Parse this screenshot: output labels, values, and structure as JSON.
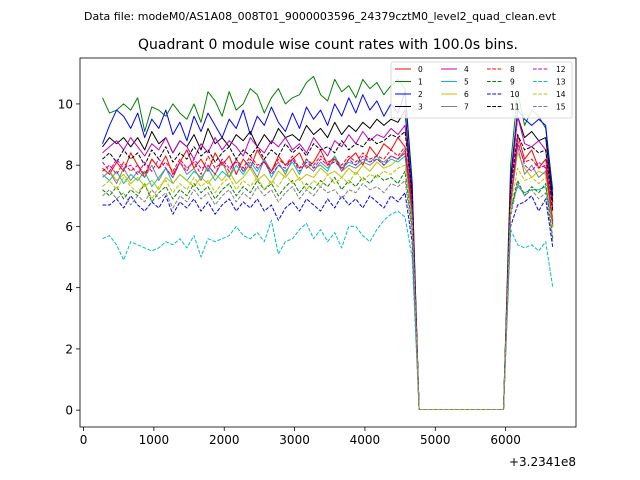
{
  "figure": {
    "suptitle": "Data file: modeM0/AS1A08_008T01_9000003596_24379cztM0_level2_quad_clean.evt"
  },
  "chart_data": {
    "type": "line",
    "title": "Quadrant 0 module wise count rates with 100.0s bins.",
    "xlabel": "",
    "ylabel": "",
    "x_offset_label": "+3.2341e8",
    "xlim": [
      -50,
      7000
    ],
    "ylim": [
      -0.55,
      11.5
    ],
    "xticks": [
      0,
      1000,
      2000,
      3000,
      4000,
      5000,
      6000
    ],
    "xtick_labels": [
      "0",
      "1000",
      "2000",
      "3000",
      "4000",
      "5000",
      "6000"
    ],
    "yticks": [
      0,
      2,
      4,
      6,
      8,
      10
    ],
    "ytick_labels": [
      "0",
      "2",
      "4",
      "6",
      "8",
      "10"
    ],
    "grid": false,
    "legend": {
      "placement": "top-right",
      "columns": 4
    },
    "x": [
      270,
      370,
      470,
      570,
      670,
      770,
      870,
      970,
      1070,
      1170,
      1270,
      1370,
      1470,
      1570,
      1670,
      1770,
      1870,
      1970,
      2070,
      2170,
      2270,
      2370,
      2470,
      2570,
      2670,
      2770,
      2870,
      2970,
      3070,
      3170,
      3270,
      3370,
      3470,
      3570,
      3670,
      3770,
      3870,
      3970,
      4070,
      4170,
      4270,
      4370,
      4470,
      4570,
      4670,
      4770,
      4870,
      4970,
      5070,
      5170,
      5270,
      5370,
      5470,
      5570,
      5670,
      5770,
      5870,
      5970,
      6070,
      6170,
      6270,
      6370,
      6470,
      6570,
      6670
    ],
    "series": [
      {
        "name": "0",
        "color": "#ff0000",
        "dash": "solid",
        "values": [
          7.9,
          7.7,
          8.1,
          7.8,
          8.4,
          8.0,
          7.6,
          8.2,
          7.9,
          8.3,
          7.7,
          8.1,
          8.5,
          7.9,
          8.2,
          7.8,
          8.4,
          8.0,
          8.3,
          7.7,
          8.2,
          7.9,
          8.5,
          8.1,
          7.8,
          8.3,
          8.0,
          8.2,
          8.4,
          7.9,
          8.1,
          8.5,
          8.0,
          8.3,
          7.8,
          8.2,
          8.4,
          8.0,
          8.6,
          8.3,
          8.7,
          8.5,
          8.9,
          8.6,
          6.8,
          0.02,
          0.02,
          0.02,
          0.02,
          0.02,
          0.02,
          0.02,
          0.02,
          0.02,
          0.02,
          0.02,
          0.02,
          0.02,
          6.6,
          9.0,
          8.2,
          8.5,
          7.9,
          8.2,
          6.2
        ]
      },
      {
        "name": "1",
        "color": "#008000",
        "dash": "solid",
        "values": [
          10.2,
          9.7,
          9.8,
          10.0,
          9.8,
          10.2,
          9.1,
          9.9,
          9.8,
          9.6,
          10.0,
          9.7,
          9.5,
          10.0,
          9.4,
          10.4,
          10.1,
          9.6,
          10.4,
          9.8,
          10.0,
          10.5,
          10.3,
          9.7,
          10.2,
          10.5,
          10.0,
          10.2,
          10.3,
          10.7,
          10.9,
          10.3,
          10.1,
          10.8,
          10.4,
          10.6,
          10.2,
          10.8,
          10.5,
          10.7,
          10.3,
          10.6,
          10.8,
          10.5,
          7.5,
          0.02,
          0.02,
          0.02,
          0.02,
          0.02,
          0.02,
          0.02,
          0.02,
          0.02,
          0.02,
          0.02,
          0.02,
          0.02,
          8.0,
          10.4,
          9.3,
          9.8,
          9.6,
          9.2,
          7.2
        ]
      },
      {
        "name": "2",
        "color": "#0000ff",
        "dash": "solid",
        "values": [
          8.7,
          9.3,
          9.8,
          9.6,
          9.2,
          9.7,
          8.9,
          9.5,
          9.2,
          9.8,
          9.0,
          9.4,
          8.8,
          9.6,
          9.1,
          9.7,
          9.3,
          8.9,
          9.5,
          9.2,
          9.8,
          9.0,
          9.6,
          9.3,
          9.9,
          9.4,
          9.1,
          9.7,
          9.2,
          9.9,
          9.5,
          9.8,
          9.3,
          10.0,
          9.6,
          10.2,
          9.7,
          10.3,
          9.8,
          10.1,
          9.6,
          10.0,
          9.7,
          10.4,
          7.4,
          0.02,
          0.02,
          0.02,
          0.02,
          0.02,
          0.02,
          0.02,
          0.02,
          0.02,
          0.02,
          0.02,
          0.02,
          0.02,
          7.6,
          9.8,
          9.5,
          9.3,
          9.5,
          9.3,
          7.0
        ]
      },
      {
        "name": "3",
        "color": "#000000",
        "dash": "solid",
        "values": [
          8.6,
          8.9,
          8.7,
          8.9,
          8.6,
          8.9,
          8.5,
          9.1,
          8.7,
          8.9,
          8.4,
          8.8,
          8.6,
          9.0,
          8.5,
          9.2,
          8.7,
          8.9,
          8.6,
          9.0,
          8.8,
          9.1,
          8.6,
          9.0,
          8.7,
          9.2,
          8.9,
          9.0,
          8.8,
          9.3,
          9.0,
          9.2,
          8.9,
          9.4,
          9.0,
          9.3,
          9.1,
          9.4,
          9.2,
          9.5,
          9.3,
          9.5,
          9.4,
          9.8,
          7.0,
          0.02,
          0.02,
          0.02,
          0.02,
          0.02,
          0.02,
          0.02,
          0.02,
          0.02,
          0.02,
          0.02,
          0.02,
          0.02,
          7.4,
          9.6,
          8.9,
          9.1,
          8.8,
          8.9,
          6.8
        ]
      },
      {
        "name": "4",
        "color": "#c000c0",
        "dash": "solid",
        "values": [
          8.4,
          8.6,
          8.8,
          8.5,
          8.9,
          8.6,
          8.3,
          8.7,
          8.5,
          8.9,
          8.4,
          8.8,
          8.6,
          8.2,
          8.7,
          8.4,
          8.9,
          8.5,
          8.8,
          8.6,
          8.3,
          8.9,
          8.6,
          8.4,
          8.8,
          8.6,
          8.9,
          8.5,
          8.7,
          8.4,
          8.9,
          8.6,
          8.3,
          8.8,
          8.6,
          9.0,
          8.7,
          9.1,
          8.8,
          9.0,
          8.9,
          9.2,
          9.0,
          9.3,
          6.9,
          0.02,
          0.02,
          0.02,
          0.02,
          0.02,
          0.02,
          0.02,
          0.02,
          0.02,
          0.02,
          0.02,
          0.02,
          0.02,
          7.2,
          9.6,
          8.7,
          8.6,
          8.8,
          8.5,
          6.6
        ]
      },
      {
        "name": "5",
        "color": "#00c0c0",
        "dash": "solid",
        "values": [
          7.7,
          7.5,
          7.8,
          7.4,
          7.7,
          7.5,
          7.8,
          7.3,
          7.6,
          7.9,
          7.4,
          7.7,
          7.5,
          7.8,
          7.6,
          7.9,
          7.5,
          7.8,
          7.6,
          8.0,
          7.7,
          8.1,
          7.8,
          8.2,
          7.6,
          8.0,
          7.8,
          8.1,
          7.7,
          8.2,
          7.9,
          8.0,
          7.8,
          8.3,
          7.9,
          8.1,
          8.0,
          8.2,
          8.1,
          8.3,
          8.0,
          8.2,
          8.1,
          8.3,
          6.1,
          0.02,
          0.02,
          0.02,
          0.02,
          0.02,
          0.02,
          0.02,
          0.02,
          0.02,
          0.02,
          0.02,
          0.02,
          0.02,
          6.6,
          7.3,
          7.1,
          7.2,
          7.2,
          7.3,
          6.0
        ]
      },
      {
        "name": "6",
        "color": "#c0c000",
        "dash": "solid",
        "values": [
          7.6,
          7.8,
          7.5,
          7.7,
          7.4,
          7.6,
          7.3,
          7.5,
          7.2,
          7.6,
          7.4,
          7.7,
          7.5,
          7.3,
          7.6,
          7.4,
          7.7,
          7.5,
          7.8,
          7.4,
          7.6,
          7.9,
          7.5,
          7.7,
          7.4,
          7.8,
          7.6,
          7.9,
          7.5,
          7.7,
          7.6,
          7.9,
          7.7,
          7.8,
          7.6,
          7.9,
          7.7,
          8.0,
          7.8,
          8.1,
          7.9,
          8.0,
          8.2,
          8.4,
          6.4,
          0.02,
          0.02,
          0.02,
          0.02,
          0.02,
          0.02,
          0.02,
          0.02,
          0.02,
          0.02,
          0.02,
          0.02,
          0.02,
          6.8,
          8.4,
          7.9,
          7.6,
          7.8,
          7.7,
          6.2
        ]
      },
      {
        "name": "7",
        "color": "#808080",
        "dash": "solid",
        "values": [
          7.6,
          7.8,
          7.4,
          7.9,
          7.5,
          7.8,
          7.6,
          8.0,
          7.5,
          7.9,
          7.6,
          8.1,
          7.7,
          7.9,
          7.5,
          8.0,
          7.7,
          8.1,
          7.6,
          8.2,
          7.8,
          8.0,
          7.6,
          8.2,
          7.8,
          8.1,
          7.7,
          8.2,
          7.9,
          8.0,
          7.8,
          8.1,
          7.9,
          8.2,
          7.8,
          8.0,
          7.9,
          8.1,
          8.0,
          8.2,
          8.1,
          8.3,
          8.2,
          8.5,
          6.4,
          0.02,
          0.02,
          0.02,
          0.02,
          0.02,
          0.02,
          0.02,
          0.02,
          0.02,
          0.02,
          0.02,
          0.02,
          0.02,
          6.7,
          8.6,
          7.7,
          8.0,
          7.6,
          7.8,
          6.0
        ]
      },
      {
        "name": "8",
        "color": "#ff0000",
        "dash": "dashed",
        "values": [
          7.8,
          8.0,
          7.7,
          8.1,
          7.8,
          8.0,
          7.7,
          8.2,
          7.9,
          8.1,
          7.8,
          8.2,
          7.9,
          8.1,
          7.7,
          8.3,
          7.9,
          8.1,
          7.8,
          8.2,
          7.9,
          8.3,
          8.0,
          8.1,
          7.8,
          8.2,
          8.0,
          8.3,
          7.9,
          8.2,
          8.0,
          8.3,
          8.1,
          8.2,
          8.0,
          8.3,
          8.1,
          8.4,
          8.2,
          8.3,
          8.2,
          8.5,
          8.3,
          8.6,
          6.5,
          0.02,
          0.02,
          0.02,
          0.02,
          0.02,
          0.02,
          0.02,
          0.02,
          0.02,
          0.02,
          0.02,
          0.02,
          0.02,
          6.9,
          8.7,
          8.1,
          8.2,
          7.9,
          8.0,
          6.1
        ]
      },
      {
        "name": "9",
        "color": "#008000",
        "dash": "dashed",
        "values": [
          7.2,
          7.0,
          7.3,
          6.9,
          7.2,
          7.0,
          7.4,
          6.8,
          7.1,
          7.3,
          6.9,
          7.2,
          7.0,
          7.4,
          7.1,
          7.3,
          6.9,
          7.2,
          7.4,
          7.0,
          7.3,
          7.1,
          7.5,
          7.2,
          7.4,
          7.0,
          7.3,
          7.5,
          7.1,
          7.4,
          7.2,
          7.5,
          7.3,
          7.6,
          7.2,
          7.5,
          7.3,
          7.6,
          7.4,
          7.7,
          7.5,
          7.6,
          7.4,
          7.8,
          6.0,
          0.02,
          0.02,
          0.02,
          0.02,
          0.02,
          0.02,
          0.02,
          0.02,
          0.02,
          0.02,
          0.02,
          0.02,
          0.02,
          6.5,
          7.5,
          7.0,
          7.3,
          7.1,
          7.4,
          5.6
        ]
      },
      {
        "name": "10",
        "color": "#0000ff",
        "dash": "dashed",
        "values": [
          6.7,
          6.7,
          6.9,
          6.6,
          7.0,
          6.7,
          6.5,
          6.8,
          6.6,
          7.0,
          6.4,
          6.8,
          6.6,
          6.9,
          6.5,
          6.8,
          6.4,
          6.7,
          6.9,
          6.5,
          6.8,
          6.6,
          6.9,
          6.5,
          6.7,
          6.2,
          6.6,
          6.8,
          6.5,
          6.9,
          6.7,
          6.5,
          6.9,
          6.6,
          7.0,
          6.7,
          6.9,
          6.6,
          7.0,
          6.8,
          6.6,
          7.0,
          6.8,
          7.1,
          5.5,
          0.02,
          0.02,
          0.02,
          0.02,
          0.02,
          0.02,
          0.02,
          0.02,
          0.02,
          0.02,
          0.02,
          0.02,
          0.02,
          6.0,
          6.7,
          6.8,
          7.0,
          6.5,
          6.9,
          5.3
        ]
      },
      {
        "name": "11",
        "color": "#000000",
        "dash": "dashed",
        "values": [
          8.2,
          8.4,
          8.1,
          8.5,
          8.2,
          8.4,
          8.0,
          8.5,
          8.2,
          8.6,
          8.1,
          8.4,
          8.2,
          8.6,
          8.3,
          8.5,
          8.1,
          8.4,
          8.6,
          8.2,
          8.5,
          8.3,
          8.6,
          8.2,
          8.5,
          8.3,
          8.7,
          8.4,
          8.6,
          8.3,
          8.7,
          8.5,
          8.6,
          8.4,
          8.8,
          8.5,
          8.7,
          8.6,
          8.9,
          8.7,
          8.8,
          9.0,
          8.9,
          9.1,
          7.0,
          0.02,
          0.02,
          0.02,
          0.02,
          0.02,
          0.02,
          0.02,
          0.02,
          0.02,
          0.02,
          0.02,
          0.02,
          0.02,
          7.2,
          9.0,
          8.5,
          8.6,
          8.4,
          8.5,
          6.5
        ]
      },
      {
        "name": "12",
        "color": "#c000c0",
        "dash": "dashed",
        "values": [
          8.1,
          7.8,
          8.2,
          7.9,
          8.0,
          7.7,
          8.1,
          7.8,
          8.2,
          7.9,
          7.6,
          8.1,
          7.8,
          8.2,
          7.9,
          8.0,
          7.7,
          8.2,
          7.9,
          8.1,
          7.8,
          8.2,
          7.9,
          8.1,
          7.7,
          8.0,
          7.9,
          8.2,
          7.8,
          8.1,
          7.9,
          8.2,
          8.0,
          8.1,
          7.9,
          8.2,
          8.0,
          8.3,
          8.1,
          8.2,
          8.0,
          8.3,
          8.2,
          8.4,
          6.6,
          0.02,
          0.02,
          0.02,
          0.02,
          0.02,
          0.02,
          0.02,
          0.02,
          0.02,
          0.02,
          0.02,
          0.02,
          0.02,
          6.8,
          8.8,
          8.0,
          7.8,
          8.1,
          7.9,
          6.0
        ]
      },
      {
        "name": "13",
        "color": "#00c0c0",
        "dash": "dashed",
        "values": [
          5.6,
          5.7,
          5.4,
          4.9,
          5.5,
          5.4,
          5.3,
          5.2,
          5.3,
          5.5,
          5.4,
          5.6,
          5.3,
          5.7,
          5.0,
          5.6,
          5.5,
          5.6,
          5.7,
          6.0,
          5.7,
          5.6,
          5.8,
          5.5,
          6.2,
          5.1,
          5.5,
          5.6,
          5.9,
          6.1,
          5.6,
          5.9,
          5.5,
          5.8,
          5.3,
          6.0,
          6.0,
          5.7,
          5.5,
          5.9,
          6.2,
          6.4,
          6.5,
          6.3,
          5.0,
          0.02,
          0.02,
          0.02,
          0.02,
          0.02,
          0.02,
          0.02,
          0.02,
          0.02,
          0.02,
          0.02,
          0.02,
          0.02,
          5.9,
          5.4,
          5.3,
          5.4,
          5.2,
          5.5,
          4.0
        ]
      },
      {
        "name": "14",
        "color": "#c0c000",
        "dash": "dashed",
        "values": [
          7.3,
          7.5,
          7.2,
          7.6,
          7.3,
          7.1,
          7.4,
          6.9,
          7.3,
          7.5,
          7.1,
          7.4,
          7.2,
          7.6,
          7.3,
          7.5,
          7.1,
          7.4,
          7.6,
          7.2,
          7.5,
          7.3,
          7.6,
          7.2,
          7.5,
          7.3,
          7.7,
          7.4,
          7.6,
          7.2,
          7.5,
          7.3,
          7.7,
          7.4,
          7.6,
          7.4,
          7.8,
          7.5,
          7.7,
          7.6,
          7.8,
          7.7,
          7.9,
          8.0,
          6.2,
          0.02,
          0.02,
          0.02,
          0.02,
          0.02,
          0.02,
          0.02,
          0.02,
          0.02,
          0.02,
          0.02,
          0.02,
          0.02,
          6.6,
          7.9,
          7.5,
          7.6,
          7.4,
          7.6,
          5.9
        ]
      },
      {
        "name": "15",
        "color": "#808080",
        "dash": "dashed",
        "values": [
          7.0,
          7.2,
          6.9,
          7.1,
          6.7,
          7.0,
          6.8,
          7.2,
          6.9,
          7.1,
          6.6,
          7.0,
          6.8,
          7.2,
          6.9,
          7.1,
          6.7,
          7.0,
          7.2,
          6.8,
          7.1,
          6.9,
          7.3,
          7.0,
          7.2,
          6.8,
          7.1,
          7.3,
          6.9,
          7.2,
          7.0,
          7.3,
          7.1,
          7.2,
          6.9,
          7.2,
          7.1,
          7.4,
          7.2,
          7.3,
          7.1,
          7.4,
          7.3,
          7.5,
          5.8,
          0.02,
          0.02,
          0.02,
          0.02,
          0.02,
          0.02,
          0.02,
          0.02,
          0.02,
          0.02,
          0.02,
          0.02,
          0.02,
          6.3,
          7.4,
          7.0,
          7.2,
          6.9,
          7.1,
          5.5
        ]
      }
    ]
  }
}
